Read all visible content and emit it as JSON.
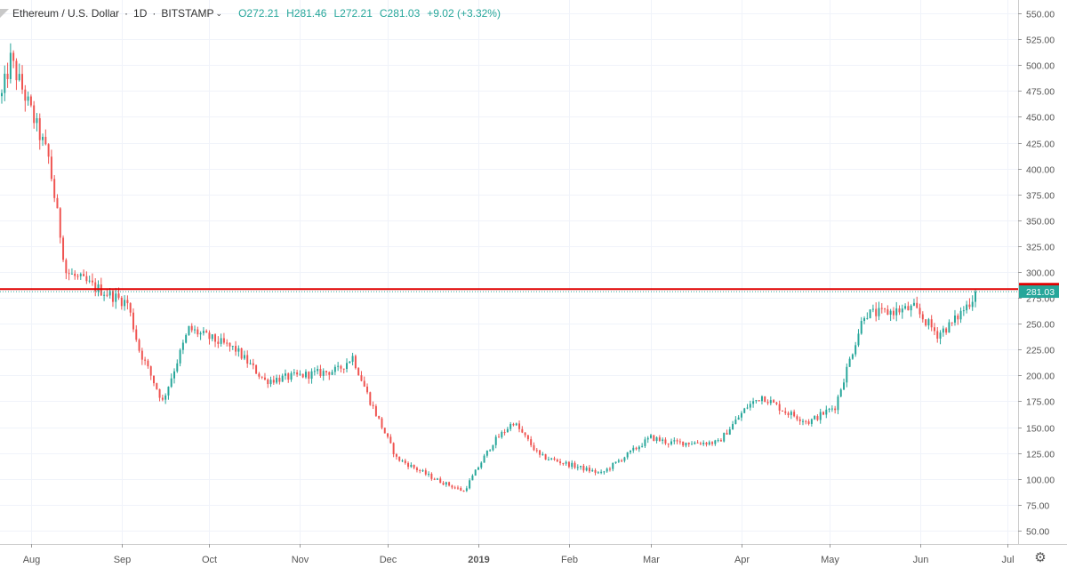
{
  "legend": {
    "title": "Ethereum / U.S. Dollar",
    "sep1": "/",
    "interval": "1D",
    "exchange": "BITSTAMP",
    "o": "O272.21",
    "h": "H281.46",
    "l": "L272.21",
    "c": "C281.03",
    "change": "+9.02 (+3.32%)"
  },
  "colors": {
    "up": "#26a69a",
    "down": "#ef5350",
    "hline": "#e00000",
    "grid": "#f0f3fa",
    "axis_text": "#555555"
  },
  "settings_icon": "gear-icon",
  "chart_data": {
    "type": "candlestick",
    "title": "Ethereum / U.S. Dollar",
    "ylim": [
      37,
      563
    ],
    "y_ticks": [
      50,
      75,
      100,
      125,
      150,
      175,
      200,
      225,
      250,
      275,
      300,
      325,
      350,
      375,
      400,
      425,
      450,
      475,
      500,
      525,
      550
    ],
    "x_ticks": [
      "Aug",
      "Sep",
      "Oct",
      "Nov",
      "Dec",
      "2019",
      "Feb",
      "Mar",
      "Apr",
      "May",
      "Jun",
      "Jul"
    ],
    "grid": true,
    "horizontal_line": {
      "value": 283.44,
      "label": "283.44"
    },
    "last_price": {
      "value": 281.03,
      "label": "281.03"
    },
    "key_points": [
      {
        "date": "Aug",
        "price": 410
      },
      {
        "date": "Sep",
        "price": 285
      },
      {
        "date": "Oct",
        "price": 225
      },
      {
        "date": "Nov",
        "price": 205
      },
      {
        "date": "Dec",
        "price": 115
      },
      {
        "date": "2019",
        "price": 140
      },
      {
        "date": "Feb",
        "price": 105
      },
      {
        "date": "Mar",
        "price": 135
      },
      {
        "date": "Apr",
        "price": 170
      },
      {
        "date": "May",
        "price": 165
      },
      {
        "date": "Jun",
        "price": 250
      },
      {
        "date": "Jun end",
        "price": 281
      }
    ]
  }
}
